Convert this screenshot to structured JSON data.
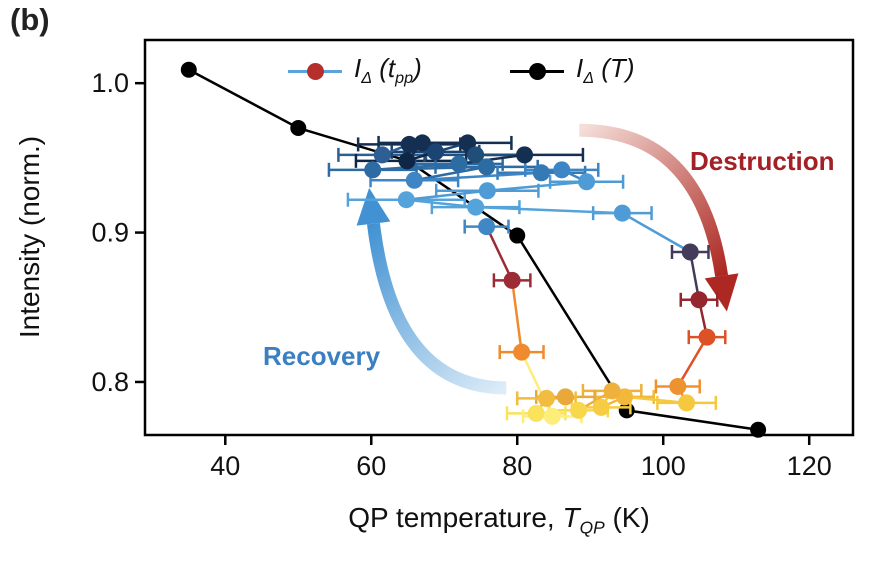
{
  "panel_label": "(b)",
  "chart_data": {
    "type": "scatter",
    "title": "",
    "ylabel": "Intensity (norm.)",
    "xlabel_parts": {
      "prefix": "QP temperature, ",
      "symbol": "T",
      "symbol_sub": "QP",
      "suffix": " (K)"
    },
    "xlim": [
      29,
      126
    ],
    "ylim": [
      0.7645,
      1.0289
    ],
    "xticks": [
      40,
      60,
      80,
      100,
      120
    ],
    "yticks": [
      0.8,
      0.9,
      1.0
    ],
    "grid": false,
    "legend_position": "top-inside",
    "legend": [
      {
        "id": "series-tpp",
        "text_parts": {
          "base": "I",
          "base_sub": "Δ",
          "open": " (",
          "arg": "t",
          "arg_sub": "pp",
          "close": ")"
        },
        "marker_color": "#b5302c",
        "line_color": "#5ba3dc"
      },
      {
        "id": "series-T",
        "text_parts": {
          "base": "I",
          "base_sub": "Δ",
          "open": " (",
          "arg": "T",
          "arg_sub": "",
          "close": ")"
        },
        "marker_color": "#000000",
        "line_color": "#000000"
      }
    ],
    "series": [
      {
        "name": "I_delta(T)",
        "type": "line+marker",
        "color": "#000000",
        "points": [
          {
            "x": 35,
            "y": 1.009
          },
          {
            "x": 50,
            "y": 0.97
          },
          {
            "x": 65,
            "y": 0.948
          },
          {
            "x": 80,
            "y": 0.898
          },
          {
            "x": 95,
            "y": 0.781
          },
          {
            "x": 113,
            "y": 0.768
          }
        ]
      },
      {
        "name": "I_delta(t_pp)",
        "type": "line+marker+xerr",
        "points": [
          {
            "x": 61.5,
            "y": 0.952,
            "xerr": 6,
            "color": "#2d5f95"
          },
          {
            "x": 65.2,
            "y": 0.959,
            "xerr": 7,
            "color": "#142f52"
          },
          {
            "x": 67.0,
            "y": 0.96,
            "xerr": 6,
            "color": "#142f52"
          },
          {
            "x": 64.9,
            "y": 0.948,
            "xerr": 7,
            "color": "#0f2747"
          },
          {
            "x": 68.8,
            "y": 0.954,
            "xerr": 6,
            "color": "#1b4473"
          },
          {
            "x": 73.2,
            "y": 0.96,
            "xerr": 6,
            "color": "#142f52"
          },
          {
            "x": 74.3,
            "y": 0.952,
            "xerr": 7,
            "color": "#1f4e79"
          },
          {
            "x": 81.0,
            "y": 0.952,
            "xerr": 8,
            "color": "#142f52"
          },
          {
            "x": 72.0,
            "y": 0.946,
            "xerr": 6,
            "color": "#2d6ba3"
          },
          {
            "x": 60.2,
            "y": 0.942,
            "xerr": 6,
            "color": "#2d6ba3"
          },
          {
            "x": 75.8,
            "y": 0.944,
            "xerr": 7,
            "color": "#2d6ba3"
          },
          {
            "x": 65.9,
            "y": 0.935,
            "xerr": 6,
            "color": "#3d85c4"
          },
          {
            "x": 83.3,
            "y": 0.94,
            "xerr": 6,
            "color": "#3579b5"
          },
          {
            "x": 86.1,
            "y": 0.942,
            "xerr": 5,
            "color": "#3d85c4"
          },
          {
            "x": 89.5,
            "y": 0.934,
            "xerr": 5,
            "color": "#4f9bd5"
          },
          {
            "x": 75.9,
            "y": 0.928,
            "xerr": 7,
            "color": "#4f9bd5"
          },
          {
            "x": 64.8,
            "y": 0.922,
            "xerr": 8,
            "color": "#55a3db"
          },
          {
            "x": 74.3,
            "y": 0.917,
            "xerr": 6,
            "color": "#55a3db"
          },
          {
            "x": 94.4,
            "y": 0.913,
            "xerr": 4,
            "color": "#4f9bd5"
          },
          {
            "x": 103.7,
            "y": 0.887,
            "xerr": 2.5,
            "color": "#433a5c"
          },
          {
            "x": 104.9,
            "y": 0.855,
            "xerr": 2.5,
            "color": "#95262e"
          },
          {
            "x": 106.0,
            "y": 0.83,
            "xerr": 2.5,
            "color": "#dd5127"
          },
          {
            "x": 102.0,
            "y": 0.797,
            "xerr": 3,
            "color": "#ee9130"
          },
          {
            "x": 103.2,
            "y": 0.786,
            "xerr": 4,
            "color": "#f6c83e"
          },
          {
            "x": 94.7,
            "y": 0.79,
            "xerr": 4,
            "color": "#f2b83a"
          },
          {
            "x": 91.5,
            "y": 0.783,
            "xerr": 4,
            "color": "#f6cc42"
          },
          {
            "x": 93.0,
            "y": 0.794,
            "xerr": 4,
            "color": "#edb13c"
          },
          {
            "x": 88.4,
            "y": 0.781,
            "xerr": 4,
            "color": "#f8d84a"
          },
          {
            "x": 86.6,
            "y": 0.79,
            "xerr": 4,
            "color": "#e9a93a"
          },
          {
            "x": 84.0,
            "y": 0.789,
            "xerr": 4,
            "color": "#f2bc40"
          },
          {
            "x": 82.6,
            "y": 0.779,
            "xerr": 4,
            "color": "#fae25a"
          },
          {
            "x": 84.8,
            "y": 0.777,
            "xerr": 4,
            "color": "#fdee7a"
          },
          {
            "x": 80.6,
            "y": 0.82,
            "xerr": 3,
            "color": "#f08a2e"
          },
          {
            "x": 79.3,
            "y": 0.868,
            "xerr": 2.5,
            "color": "#9b2c35"
          },
          {
            "x": 75.8,
            "y": 0.904,
            "xerr": 3,
            "color": "#3f87c5"
          }
        ]
      }
    ],
    "annotations": [
      {
        "id": "destruction",
        "text": "Destruction",
        "color": "#a32126"
      },
      {
        "id": "recovery",
        "text": "Recovery",
        "color": "#3a7fc1"
      }
    ],
    "arrows": [
      {
        "id": "destruction-arrow",
        "x1": 88.5,
        "y1": 0.9685,
        "x2": 108,
        "y2": 0.871,
        "color_from": "#f5ded9",
        "color_to": "#ad2822"
      },
      {
        "id": "recovery-arrow",
        "x1": 78.5,
        "y1": 0.796,
        "x2": 60.3,
        "y2": 0.906,
        "color_from": "#ddecf8",
        "color_to": "#4292d3"
      }
    ]
  }
}
